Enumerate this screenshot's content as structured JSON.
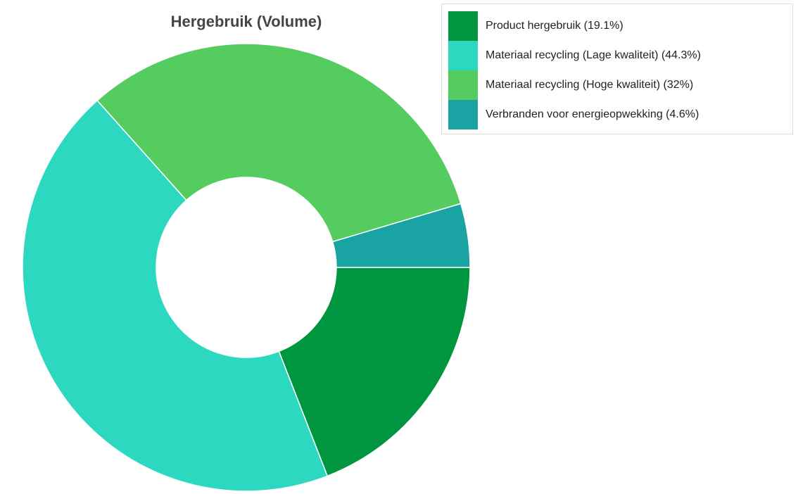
{
  "chart_data": {
    "type": "donut",
    "title": "Hergebruik (Volume)",
    "categories": [
      "Product hergebruik (19.1%)",
      "Materiaal recycling (Lage kwaliteit) (44.3%)",
      "Materiaal recycling (Hoge kwaliteit) (32%)",
      "Verbranden voor energieopwekking (4.6%)"
    ],
    "values": [
      19.1,
      44.3,
      32,
      4.6
    ],
    "colors": [
      "#009640",
      "#2cd9c0",
      "#55cc60",
      "#1aa3a3"
    ],
    "legend": "top-right"
  }
}
